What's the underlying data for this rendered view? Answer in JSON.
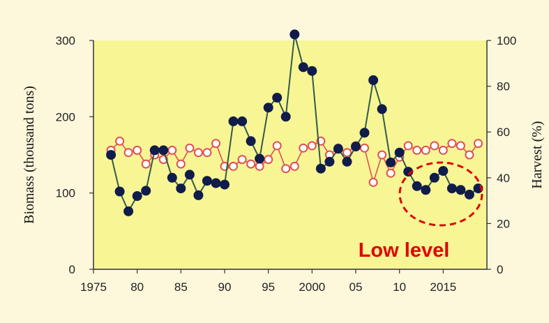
{
  "chart_data": {
    "type": "line",
    "ylabel": "Biomass (thousand tons)",
    "y2label": "Harvest (%)",
    "xlim": [
      1975,
      2020
    ],
    "ylim": [
      0,
      300
    ],
    "y2lim": [
      0,
      100
    ],
    "x_ticks": [
      1975,
      1980,
      1985,
      1990,
      1995,
      2000,
      2005,
      2010,
      2015
    ],
    "x_tick_labels": [
      "1975",
      "80",
      "85",
      "90",
      "95",
      "2000",
      "05",
      "10",
      "2015"
    ],
    "y_ticks": [
      0,
      100,
      200,
      300
    ],
    "y_tick_labels": [
      "0",
      "100",
      "200",
      "300"
    ],
    "y2_ticks": [
      0,
      20,
      40,
      60,
      80,
      100
    ],
    "y2_tick_labels": [
      "0",
      "20",
      "40",
      "60",
      "80",
      "100"
    ],
    "grid": false,
    "colors": {
      "plot_bg": "#f8f595",
      "frame_bg": "#fdf8dc",
      "biomass": "#101c4a",
      "harvest": "#e05050",
      "annotation": "#e00000"
    },
    "series": [
      {
        "key": "biomass",
        "axis": "left",
        "marker": "filled-circle",
        "x": [
          1977,
          1978,
          1979,
          1980,
          1981,
          1982,
          1983,
          1984,
          1985,
          1986,
          1987,
          1988,
          1989,
          1990,
          1991,
          1992,
          1993,
          1994,
          1995,
          1996,
          1997,
          1998,
          1999,
          2000,
          2001,
          2002,
          2003,
          2004,
          2005,
          2006,
          2007,
          2008,
          2009,
          2010,
          2011,
          2012,
          2013,
          2014,
          2015,
          2016,
          2017,
          2018,
          2019
        ],
        "values": [
          150,
          102,
          76,
          96,
          103,
          156,
          156,
          120,
          106,
          124,
          97,
          116,
          113,
          111,
          194,
          194,
          168,
          145,
          212,
          225,
          200,
          308,
          265,
          260,
          132,
          141,
          158,
          141,
          161,
          179,
          248,
          210,
          140,
          153,
          128,
          109,
          104,
          120,
          129,
          106,
          104,
          98,
          106
        ]
      },
      {
        "key": "harvest",
        "axis": "right",
        "marker": "open-circle",
        "x": [
          1977,
          1978,
          1979,
          1980,
          1981,
          1982,
          1983,
          1984,
          1985,
          1986,
          1987,
          1988,
          1989,
          1990,
          1991,
          1992,
          1993,
          1994,
          1995,
          1996,
          1997,
          1998,
          1999,
          2000,
          2001,
          2002,
          2003,
          2004,
          2005,
          2006,
          2007,
          2008,
          2009,
          2010,
          2011,
          2012,
          2013,
          2014,
          2015,
          2016,
          2017,
          2018,
          2019
        ],
        "values": [
          52,
          56,
          51,
          52,
          46,
          50,
          48,
          52,
          46,
          53,
          51,
          51,
          55,
          45,
          45,
          48,
          46,
          45,
          48,
          54,
          44,
          45,
          53,
          54,
          56,
          50,
          53,
          51,
          54,
          53,
          38,
          50,
          42,
          49,
          54,
          52,
          52,
          54,
          52,
          55,
          54,
          50,
          55
        ]
      }
    ],
    "annotations": [
      {
        "text": "Low level",
        "highlight_x": [
          2010.5,
          2019.5
        ],
        "highlight_y": [
          70,
          165
        ]
      }
    ]
  }
}
